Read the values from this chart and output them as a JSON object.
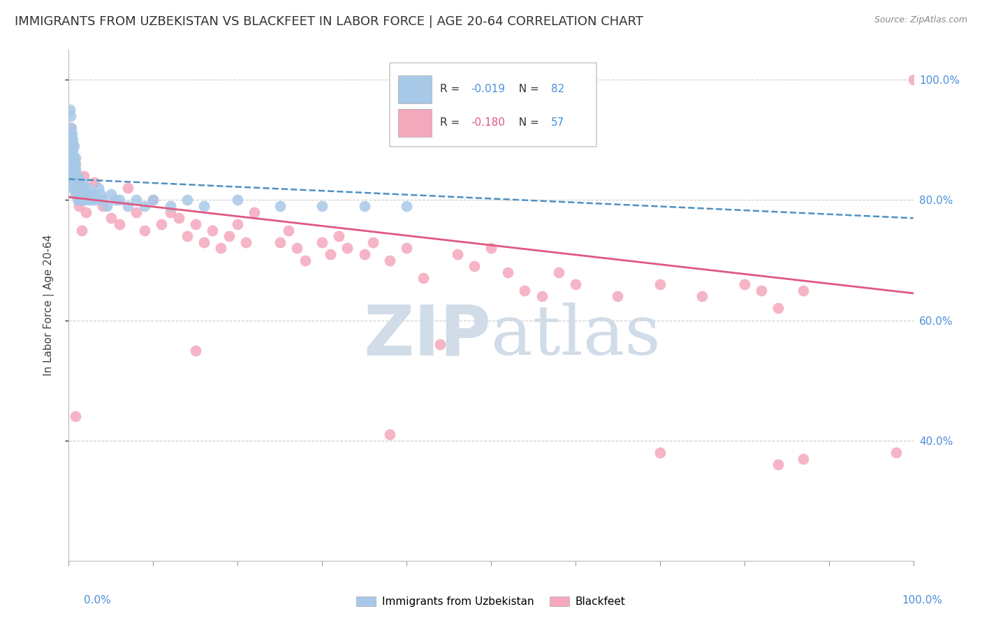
{
  "title": "IMMIGRANTS FROM UZBEKISTAN VS BLACKFEET IN LABOR FORCE | AGE 20-64 CORRELATION CHART",
  "source": "Source: ZipAtlas.com",
  "ylabel": "In Labor Force | Age 20-64",
  "legend_uzbekistan": {
    "R": "-0.019",
    "N": "82",
    "color": "#a8c8e8"
  },
  "legend_blackfeet": {
    "R": "-0.180",
    "N": "57",
    "color": "#f4a8bc"
  },
  "uzbekistan_color": "#a8c8e8",
  "blackfeet_color": "#f4a8bc",
  "uzbekistan_line_color": "#5090c0",
  "blackfeet_line_color": "#e05880",
  "uzbekistan_x": [
    0.001,
    0.001,
    0.002,
    0.002,
    0.002,
    0.003,
    0.003,
    0.003,
    0.003,
    0.004,
    0.004,
    0.004,
    0.004,
    0.004,
    0.005,
    0.005,
    0.005,
    0.005,
    0.005,
    0.005,
    0.005,
    0.006,
    0.006,
    0.006,
    0.006,
    0.006,
    0.006,
    0.007,
    0.007,
    0.007,
    0.007,
    0.007,
    0.008,
    0.008,
    0.008,
    0.008,
    0.009,
    0.009,
    0.009,
    0.009,
    0.01,
    0.01,
    0.01,
    0.011,
    0.011,
    0.012,
    0.012,
    0.013,
    0.013,
    0.014,
    0.015,
    0.015,
    0.016,
    0.017,
    0.018,
    0.019,
    0.02,
    0.022,
    0.024,
    0.025,
    0.027,
    0.03,
    0.032,
    0.035,
    0.038,
    0.04,
    0.045,
    0.05,
    0.055,
    0.06,
    0.07,
    0.08,
    0.09,
    0.1,
    0.12,
    0.14,
    0.16,
    0.2,
    0.25,
    0.3,
    0.35,
    0.4
  ],
  "uzbekistan_y": [
    0.95,
    0.88,
    0.91,
    0.86,
    0.94,
    0.87,
    0.89,
    0.92,
    0.84,
    0.88,
    0.91,
    0.85,
    0.86,
    0.9,
    0.84,
    0.87,
    0.89,
    0.82,
    0.86,
    0.88,
    0.9,
    0.83,
    0.85,
    0.87,
    0.84,
    0.86,
    0.89,
    0.82,
    0.84,
    0.86,
    0.83,
    0.85,
    0.81,
    0.83,
    0.85,
    0.87,
    0.82,
    0.84,
    0.81,
    0.83,
    0.82,
    0.84,
    0.8,
    0.82,
    0.83,
    0.81,
    0.83,
    0.82,
    0.8,
    0.81,
    0.82,
    0.8,
    0.81,
    0.83,
    0.82,
    0.8,
    0.81,
    0.82,
    0.8,
    0.81,
    0.8,
    0.81,
    0.8,
    0.82,
    0.81,
    0.8,
    0.79,
    0.81,
    0.8,
    0.8,
    0.79,
    0.8,
    0.79,
    0.8,
    0.79,
    0.8,
    0.79,
    0.8,
    0.79,
    0.79,
    0.79,
    0.79
  ],
  "blackfeet_x": [
    0.002,
    0.008,
    0.01,
    0.012,
    0.015,
    0.018,
    0.02,
    0.025,
    0.03,
    0.04,
    0.05,
    0.06,
    0.07,
    0.08,
    0.09,
    0.1,
    0.11,
    0.12,
    0.13,
    0.14,
    0.15,
    0.16,
    0.17,
    0.18,
    0.19,
    0.2,
    0.21,
    0.22,
    0.25,
    0.26,
    0.27,
    0.28,
    0.3,
    0.31,
    0.32,
    0.33,
    0.35,
    0.36,
    0.38,
    0.4,
    0.42,
    0.44,
    0.46,
    0.48,
    0.5,
    0.52,
    0.54,
    0.56,
    0.58,
    0.6,
    0.65,
    0.7,
    0.75,
    0.8,
    0.82,
    0.84,
    0.87
  ],
  "blackfeet_y": [
    0.92,
    0.86,
    0.82,
    0.79,
    0.75,
    0.84,
    0.78,
    0.81,
    0.83,
    0.79,
    0.77,
    0.76,
    0.82,
    0.78,
    0.75,
    0.8,
    0.76,
    0.78,
    0.77,
    0.74,
    0.76,
    0.73,
    0.75,
    0.72,
    0.74,
    0.76,
    0.73,
    0.78,
    0.73,
    0.75,
    0.72,
    0.7,
    0.73,
    0.71,
    0.74,
    0.72,
    0.71,
    0.73,
    0.7,
    0.72,
    0.67,
    0.56,
    0.71,
    0.69,
    0.72,
    0.68,
    0.65,
    0.64,
    0.68,
    0.66,
    0.64,
    0.66,
    0.64,
    0.66,
    0.65,
    0.62,
    0.65
  ],
  "blackfeet_outliers_x": [
    0.008,
    0.15,
    0.38,
    0.7,
    0.84,
    0.87,
    0.98,
    1.0
  ],
  "blackfeet_outliers_y": [
    0.44,
    0.55,
    0.41,
    0.38,
    0.36,
    0.37,
    0.38,
    1.0
  ],
  "uzb_line_x0": 0.0,
  "uzb_line_x1": 1.0,
  "uzb_line_y0": 0.835,
  "uzb_line_y1": 0.77,
  "blk_line_x0": 0.0,
  "blk_line_x1": 1.0,
  "blk_line_y0": 0.805,
  "blk_line_y1": 0.645,
  "ylim_min": 0.2,
  "ylim_max": 1.05,
  "xlim_min": 0.0,
  "xlim_max": 1.0,
  "yticks": [
    0.4,
    0.6,
    0.8,
    1.0
  ],
  "ytick_labels": [
    "40.0%",
    "60.0%",
    "80.0%",
    "100.0%"
  ],
  "grid_color": "#cccccc",
  "background_color": "#ffffff",
  "watermark_color": "#d0dce8",
  "title_fontsize": 13,
  "axis_label_fontsize": 11,
  "tick_fontsize": 11,
  "legend_R_color_uzb": "#4a90d9",
  "legend_R_color_blk": "#e05880",
  "legend_N_color": "#4a90d9"
}
